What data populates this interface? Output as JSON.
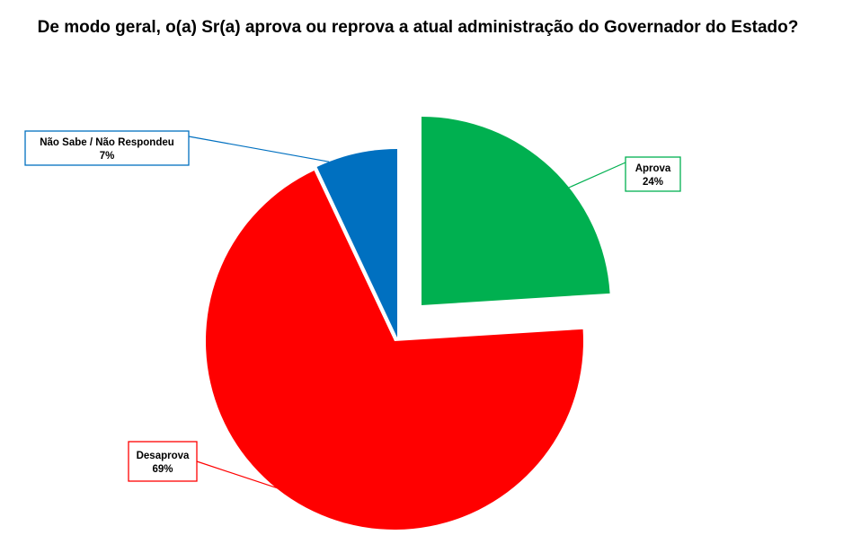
{
  "chart_data": {
    "type": "pie",
    "title": "De modo geral, o(a) Sr(a) aprova ou reprova a atual administração do Governador do Estado?",
    "slices": [
      {
        "name": "Aprova",
        "value": 24,
        "value_label": "24%",
        "color": "#00B050"
      },
      {
        "name": "Desaprova",
        "value": 69,
        "value_label": "69%",
        "color": "#FF0000"
      },
      {
        "name": "Não Sabe / Não Respondeu",
        "value": 7,
        "value_label": "7%",
        "color": "#0070C0"
      }
    ],
    "legend": "none",
    "labels": "callouts"
  }
}
